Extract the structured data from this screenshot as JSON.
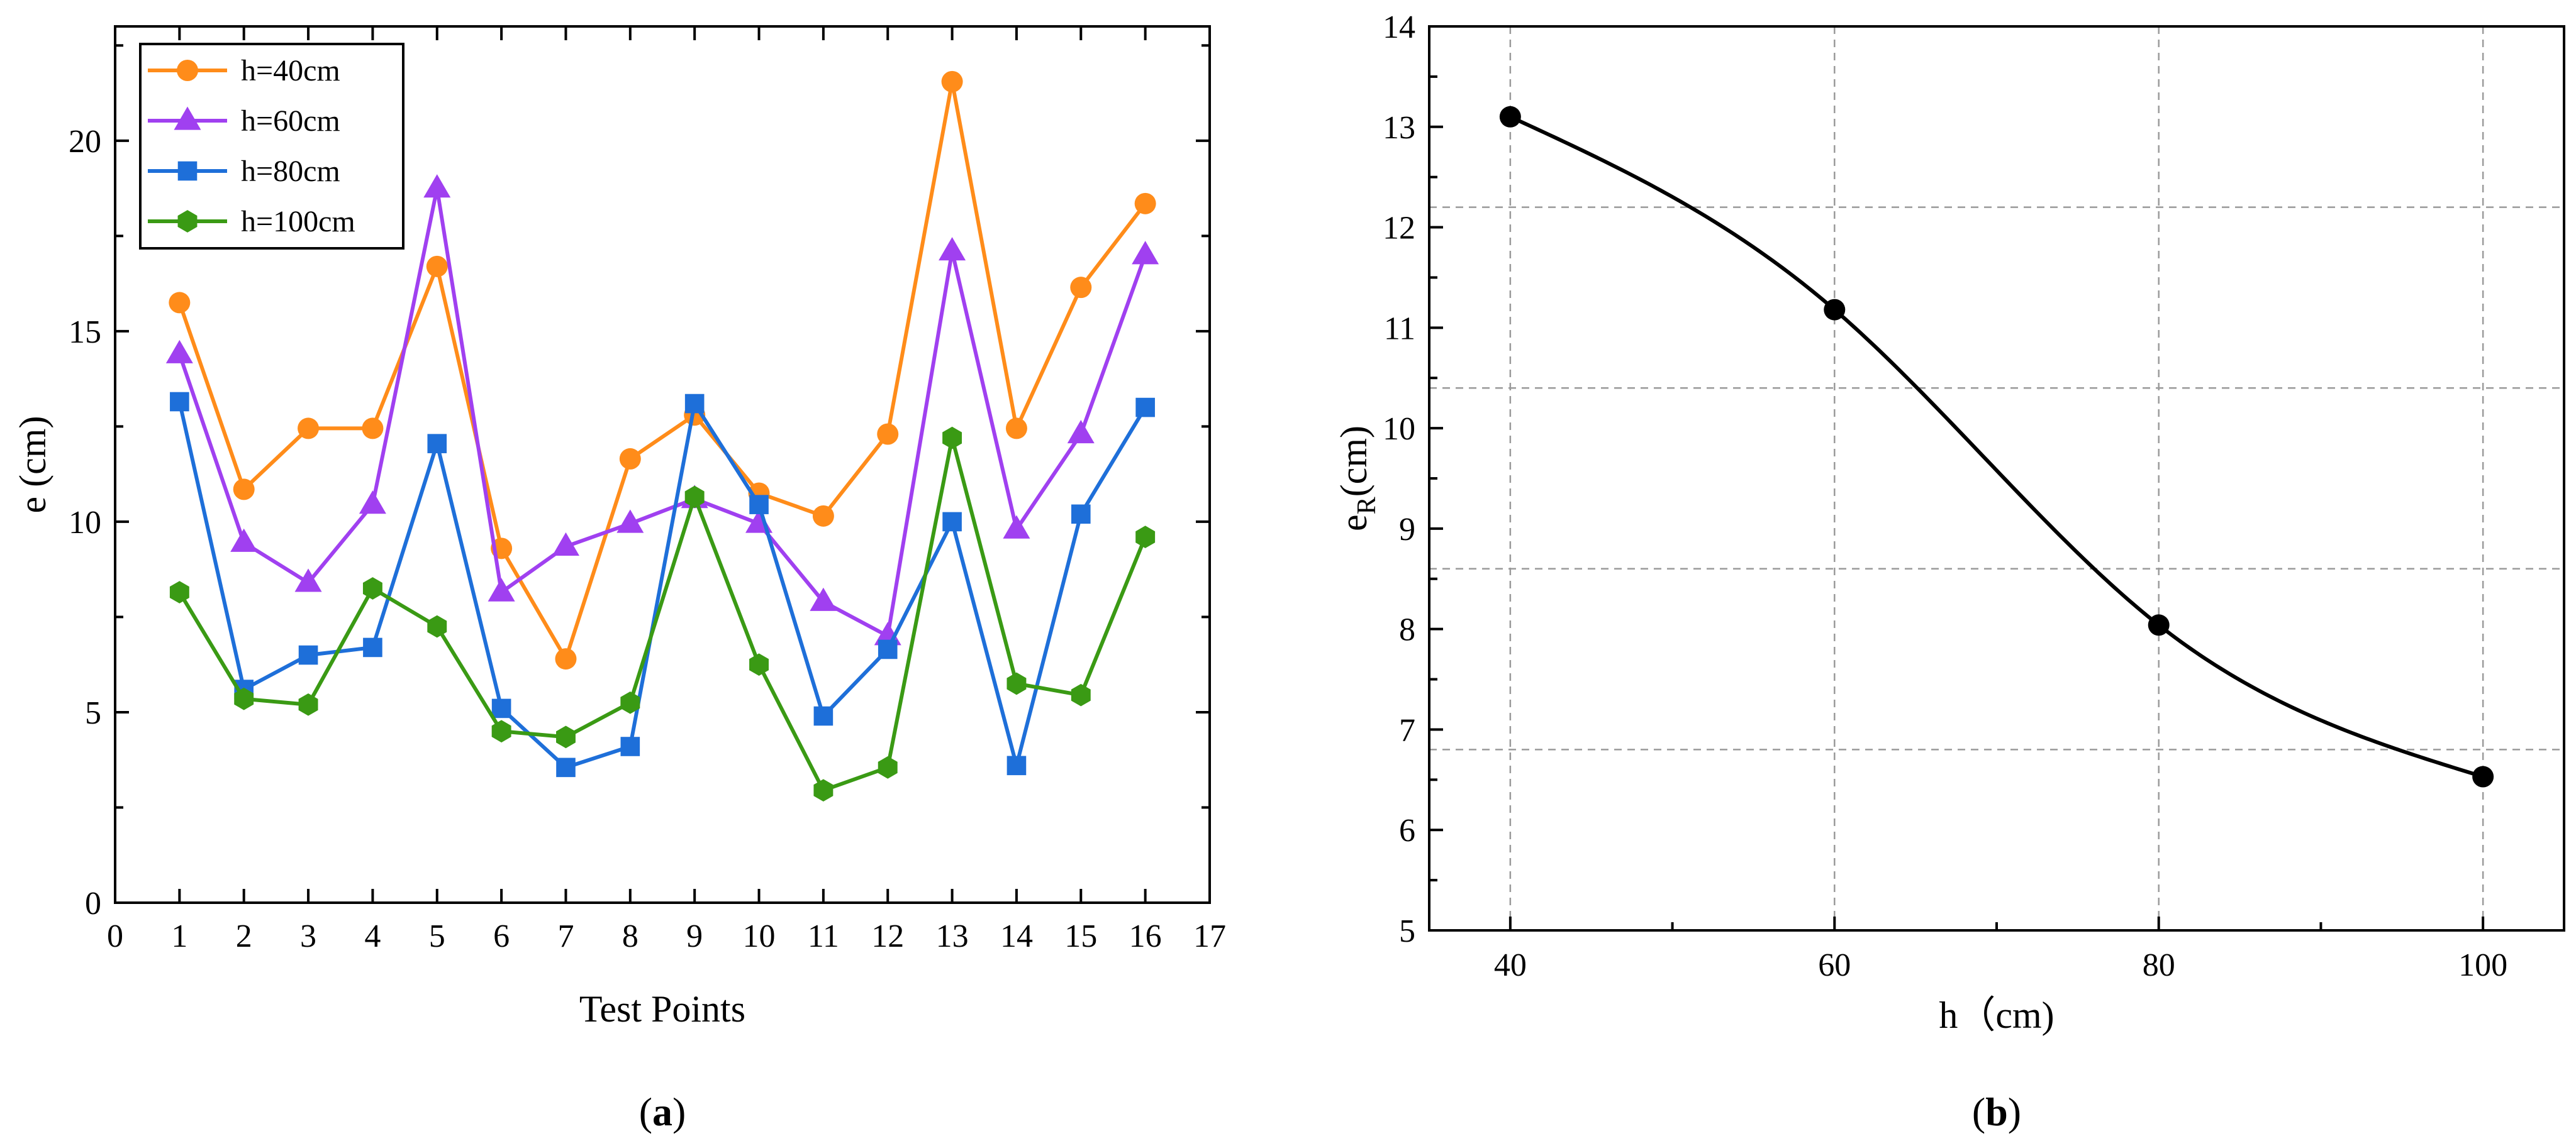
{
  "chart_data": [
    {
      "type": "line",
      "panel_label_open": "(",
      "panel_label_letter": "a",
      "panel_label_close": ")",
      "xlabel": "Test Points",
      "ylabel": "e (cm)",
      "xlim": [
        0,
        17
      ],
      "ylim": [
        0,
        23
      ],
      "xticks": [
        0,
        1,
        2,
        3,
        4,
        5,
        6,
        7,
        8,
        9,
        10,
        11,
        12,
        13,
        14,
        15,
        16,
        17
      ],
      "yticks": [
        0,
        5,
        10,
        15,
        20
      ],
      "grid": false,
      "legend_position": "top-left",
      "x": [
        1,
        2,
        3,
        4,
        5,
        6,
        7,
        8,
        9,
        10,
        11,
        12,
        13,
        14,
        15,
        16
      ],
      "series": [
        {
          "name": "h=40cm",
          "color": "#FF8C1A",
          "marker": "circle",
          "values": [
            15.75,
            10.85,
            12.45,
            12.45,
            16.7,
            9.3,
            6.4,
            11.65,
            12.8,
            10.75,
            10.15,
            12.3,
            21.55,
            12.45,
            16.15,
            18.35
          ]
        },
        {
          "name": "h=60cm",
          "color": "#A040F0",
          "marker": "triangle",
          "values": [
            14.4,
            9.45,
            8.4,
            10.45,
            18.75,
            8.15,
            9.35,
            9.95,
            10.6,
            9.95,
            7.9,
            7.0,
            17.1,
            9.8,
            12.3,
            17.0
          ]
        },
        {
          "name": "h=80cm",
          "color": "#1E6FD9",
          "marker": "square",
          "values": [
            13.15,
            5.6,
            6.5,
            6.7,
            12.05,
            5.1,
            3.55,
            4.1,
            13.1,
            10.45,
            4.9,
            6.65,
            10.0,
            3.6,
            10.2,
            13.0
          ]
        },
        {
          "name": "h=100cm",
          "color": "#3A9A14",
          "marker": "hexagon",
          "values": [
            8.15,
            5.35,
            5.2,
            8.25,
            7.25,
            4.5,
            4.35,
            5.25,
            10.65,
            6.25,
            2.95,
            3.55,
            12.2,
            5.75,
            5.45,
            9.6
          ]
        }
      ]
    },
    {
      "type": "line",
      "panel_label_open": "(",
      "panel_label_letter": "b",
      "panel_label_close": ")",
      "xlabel": "h（cm)",
      "ylabel_main": "e",
      "ylabel_sub": "R",
      "ylabel_tail": "(cm)",
      "xlim": [
        35,
        105
      ],
      "ylim": [
        5,
        14
      ],
      "xticks": [
        40,
        60,
        80,
        100
      ],
      "yticks": [
        5,
        6,
        7,
        8,
        9,
        10,
        11,
        12,
        13,
        14
      ],
      "grid": true,
      "series": [
        {
          "name": "e_R",
          "color": "#000000",
          "marker": "circle",
          "x": [
            40,
            60,
            80,
            100
          ],
          "values": [
            13.1,
            11.18,
            8.04,
            6.53
          ]
        }
      ]
    }
  ]
}
